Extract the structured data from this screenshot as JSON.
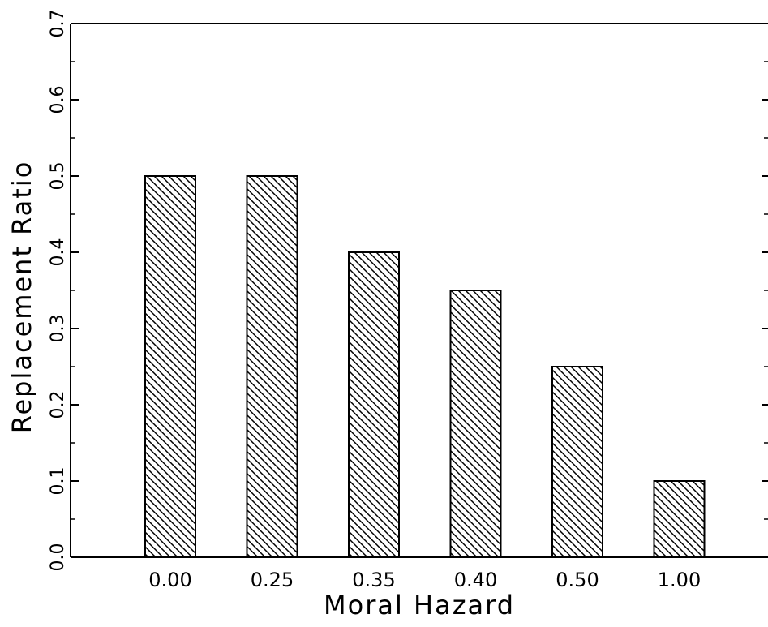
{
  "chart_data": {
    "type": "bar",
    "title": "",
    "xlabel": "Moral Hazard",
    "ylabel": "Replacement Ratio",
    "categories": [
      "0.00",
      "0.25",
      "0.35",
      "0.40",
      "0.50",
      "1.00"
    ],
    "values": [
      0.5,
      0.5,
      0.4,
      0.35,
      0.25,
      0.1
    ],
    "ylim": [
      0.0,
      0.7
    ],
    "yticks": [
      "0.0",
      "0.1",
      "0.2",
      "0.3",
      "0.4",
      "0.5",
      "0.6",
      "0.7"
    ],
    "grid": false,
    "legend": "none",
    "bar_fill": "hatched diagonal",
    "colors": {
      "ink": "#000000",
      "background": "#ffffff"
    }
  }
}
